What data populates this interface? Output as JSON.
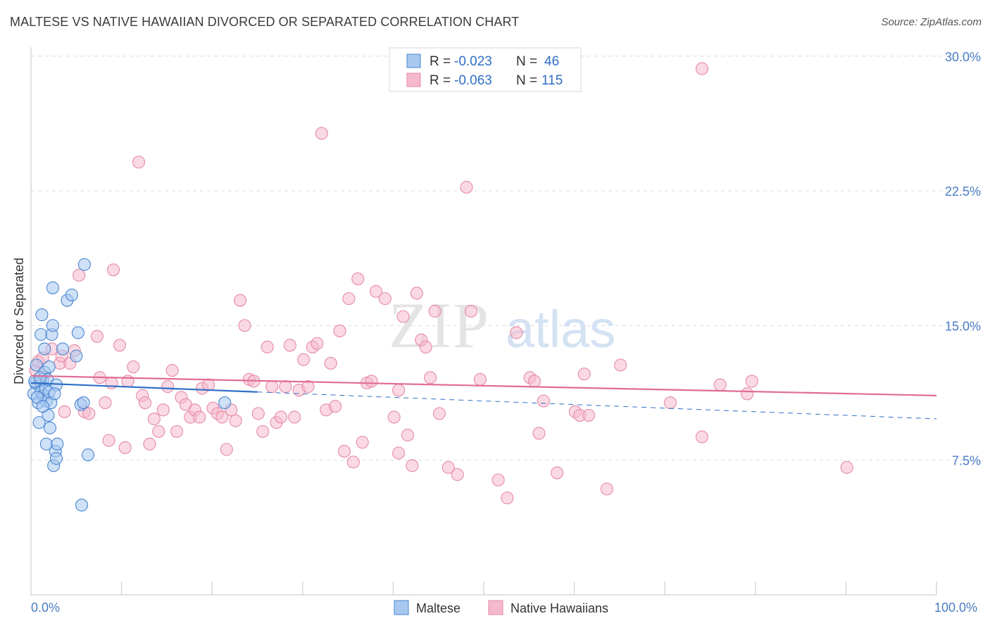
{
  "header": {
    "title": "MALTESE VS NATIVE HAWAIIAN DIVORCED OR SEPARATED CORRELATION CHART",
    "source": "Source: ZipAtlas.com"
  },
  "watermark": {
    "zip": "ZIP",
    "atlas": "atlas"
  },
  "colors": {
    "maltese_fill": "#a8c8f0",
    "maltese_stroke": "#4a86d0",
    "maltese_line": "#2f6fc6",
    "hawaiian_fill": "#f6b9cc",
    "hawaiian_stroke": "#e48aa8",
    "hawaiian_line": "#e06c96",
    "axis_label": "#4a7cc4",
    "grid": "#dcdcdc"
  },
  "legend": {
    "rows": [
      {
        "r_label": "R =",
        "r_value": "-0.023",
        "n_label": "N =",
        "n_value": "46"
      },
      {
        "r_label": "R =",
        "r_value": "-0.063",
        "n_label": "N =",
        "n_value": "115"
      }
    ]
  },
  "chart_data": {
    "type": "scatter",
    "title": "MALTESE VS NATIVE HAWAIIAN DIVORCED OR SEPARATED CORRELATION CHART",
    "xlabel": "",
    "ylabel": "Divorced or Separated",
    "xlim": [
      0,
      100
    ],
    "ylim": [
      0,
      30.5
    ],
    "x_tick_labels": [
      "0.0%",
      "100.0%"
    ],
    "y_ticks": [
      7.5,
      15.0,
      22.5,
      30.0
    ],
    "y_tick_labels": [
      "7.5%",
      "15.0%",
      "22.5%",
      "30.0%"
    ],
    "grid": true,
    "series": [
      {
        "name": "Maltese",
        "r": -0.023,
        "n": 46,
        "trend": {
          "x0": 0,
          "y0": 11.8,
          "x1": 25,
          "y1": 11.3,
          "dash_x1": 100,
          "dash_y1": 9.8
        },
        "points": [
          [
            0.3,
            11.2
          ],
          [
            0.5,
            11.8
          ],
          [
            0.6,
            12.8
          ],
          [
            0.8,
            10.7
          ],
          [
            0.9,
            9.6
          ],
          [
            1.0,
            11.9
          ],
          [
            1.1,
            14.5
          ],
          [
            1.1,
            11.3
          ],
          [
            1.2,
            15.6
          ],
          [
            1.3,
            12.0
          ],
          [
            1.4,
            11.1
          ],
          [
            1.5,
            12.4
          ],
          [
            1.5,
            13.7
          ],
          [
            1.6,
            11.5
          ],
          [
            1.7,
            8.4
          ],
          [
            1.7,
            10.8
          ],
          [
            1.8,
            12.0
          ],
          [
            1.9,
            10.0
          ],
          [
            2.0,
            12.7
          ],
          [
            2.0,
            11.3
          ],
          [
            2.1,
            9.3
          ],
          [
            2.2,
            10.7
          ],
          [
            2.3,
            14.5
          ],
          [
            2.4,
            17.1
          ],
          [
            2.4,
            15.0
          ],
          [
            2.5,
            7.2
          ],
          [
            2.7,
            8.0
          ],
          [
            2.8,
            11.7
          ],
          [
            2.8,
            7.6
          ],
          [
            2.9,
            8.4
          ],
          [
            3.5,
            13.7
          ],
          [
            4.0,
            16.4
          ],
          [
            4.5,
            16.7
          ],
          [
            5.0,
            13.3
          ],
          [
            5.2,
            14.6
          ],
          [
            5.5,
            10.6
          ],
          [
            5.6,
            5.0
          ],
          [
            5.8,
            10.7
          ],
          [
            5.9,
            18.4
          ],
          [
            6.3,
            7.8
          ],
          [
            0.4,
            11.9
          ],
          [
            0.7,
            11.0
          ],
          [
            1.0,
            12.1
          ],
          [
            1.3,
            10.5
          ],
          [
            2.6,
            11.2
          ],
          [
            21.4,
            10.7
          ]
        ]
      },
      {
        "name": "Native Hawaiians",
        "r": -0.063,
        "n": 115,
        "trend": {
          "x0": 0,
          "y0": 12.2,
          "x1": 100,
          "y1": 11.1
        },
        "points": [
          [
            0.5,
            12.5
          ],
          [
            0.8,
            13.0
          ],
          [
            1.3,
            13.2
          ],
          [
            2.3,
            13.7
          ],
          [
            3.2,
            12.9
          ],
          [
            3.4,
            13.3
          ],
          [
            3.7,
            10.2
          ],
          [
            4.3,
            12.9
          ],
          [
            4.8,
            13.6
          ],
          [
            5.3,
            17.8
          ],
          [
            5.9,
            10.2
          ],
          [
            6.4,
            10.1
          ],
          [
            7.3,
            14.4
          ],
          [
            7.6,
            12.1
          ],
          [
            8.2,
            10.7
          ],
          [
            8.6,
            8.6
          ],
          [
            8.9,
            11.8
          ],
          [
            9.1,
            18.1
          ],
          [
            9.8,
            13.9
          ],
          [
            10.4,
            8.2
          ],
          [
            10.7,
            11.9
          ],
          [
            11.3,
            12.7
          ],
          [
            11.9,
            24.1
          ],
          [
            12.3,
            11.1
          ],
          [
            12.6,
            10.7
          ],
          [
            13.1,
            8.4
          ],
          [
            13.6,
            9.8
          ],
          [
            14.1,
            9.1
          ],
          [
            14.6,
            10.3
          ],
          [
            15.1,
            11.6
          ],
          [
            15.6,
            12.5
          ],
          [
            16.1,
            9.1
          ],
          [
            16.6,
            11.0
          ],
          [
            17.1,
            10.6
          ],
          [
            17.6,
            9.9
          ],
          [
            18.1,
            10.3
          ],
          [
            18.6,
            9.9
          ],
          [
            18.9,
            11.5
          ],
          [
            19.6,
            11.7
          ],
          [
            20.1,
            10.4
          ],
          [
            20.6,
            10.1
          ],
          [
            21.1,
            9.9
          ],
          [
            21.6,
            8.1
          ],
          [
            22.1,
            10.3
          ],
          [
            22.6,
            9.7
          ],
          [
            23.1,
            16.4
          ],
          [
            23.6,
            15.0
          ],
          [
            24.1,
            12.0
          ],
          [
            24.6,
            11.9
          ],
          [
            25.1,
            10.1
          ],
          [
            25.6,
            9.1
          ],
          [
            26.1,
            13.8
          ],
          [
            26.6,
            11.6
          ],
          [
            27.1,
            9.6
          ],
          [
            27.6,
            9.9
          ],
          [
            28.1,
            11.6
          ],
          [
            28.6,
            13.9
          ],
          [
            29.1,
            9.9
          ],
          [
            29.6,
            11.4
          ],
          [
            30.1,
            13.1
          ],
          [
            30.6,
            11.6
          ],
          [
            31.1,
            13.8
          ],
          [
            31.6,
            14.0
          ],
          [
            32.1,
            25.7
          ],
          [
            32.6,
            10.3
          ],
          [
            33.1,
            12.9
          ],
          [
            33.6,
            10.5
          ],
          [
            34.1,
            14.7
          ],
          [
            34.6,
            8.0
          ],
          [
            35.1,
            16.5
          ],
          [
            35.6,
            7.4
          ],
          [
            36.1,
            17.6
          ],
          [
            36.6,
            8.5
          ],
          [
            37.1,
            11.8
          ],
          [
            37.6,
            11.9
          ],
          [
            38.1,
            16.9
          ],
          [
            39.1,
            16.5
          ],
          [
            40.1,
            9.9
          ],
          [
            40.6,
            11.4
          ],
          [
            40.6,
            7.9
          ],
          [
            41.1,
            15.5
          ],
          [
            41.6,
            8.9
          ],
          [
            42.1,
            7.2
          ],
          [
            42.6,
            16.8
          ],
          [
            43.1,
            14.2
          ],
          [
            43.6,
            13.8
          ],
          [
            44.1,
            12.1
          ],
          [
            44.6,
            15.8
          ],
          [
            45.1,
            10.1
          ],
          [
            46.1,
            7.1
          ],
          [
            47.1,
            6.7
          ],
          [
            48.1,
            22.7
          ],
          [
            48.6,
            15.8
          ],
          [
            49.6,
            12.0
          ],
          [
            51.6,
            6.4
          ],
          [
            52.6,
            5.4
          ],
          [
            53.6,
            14.6
          ],
          [
            55.1,
            12.1
          ],
          [
            55.6,
            11.9
          ],
          [
            56.1,
            9.0
          ],
          [
            56.6,
            10.8
          ],
          [
            58.1,
            6.8
          ],
          [
            60.1,
            10.2
          ],
          [
            60.6,
            10.0
          ],
          [
            61.1,
            12.3
          ],
          [
            61.6,
            10.0
          ],
          [
            63.6,
            5.9
          ],
          [
            65.1,
            12.8
          ],
          [
            70.6,
            10.7
          ],
          [
            74.1,
            29.3
          ],
          [
            74.1,
            8.8
          ],
          [
            76.1,
            11.7
          ],
          [
            79.1,
            11.2
          ],
          [
            79.6,
            11.9
          ],
          [
            90.1,
            7.1
          ]
        ]
      }
    ]
  },
  "bottom_legend": {
    "maltese": "Maltese",
    "hawaiians": "Native Hawaiians"
  }
}
